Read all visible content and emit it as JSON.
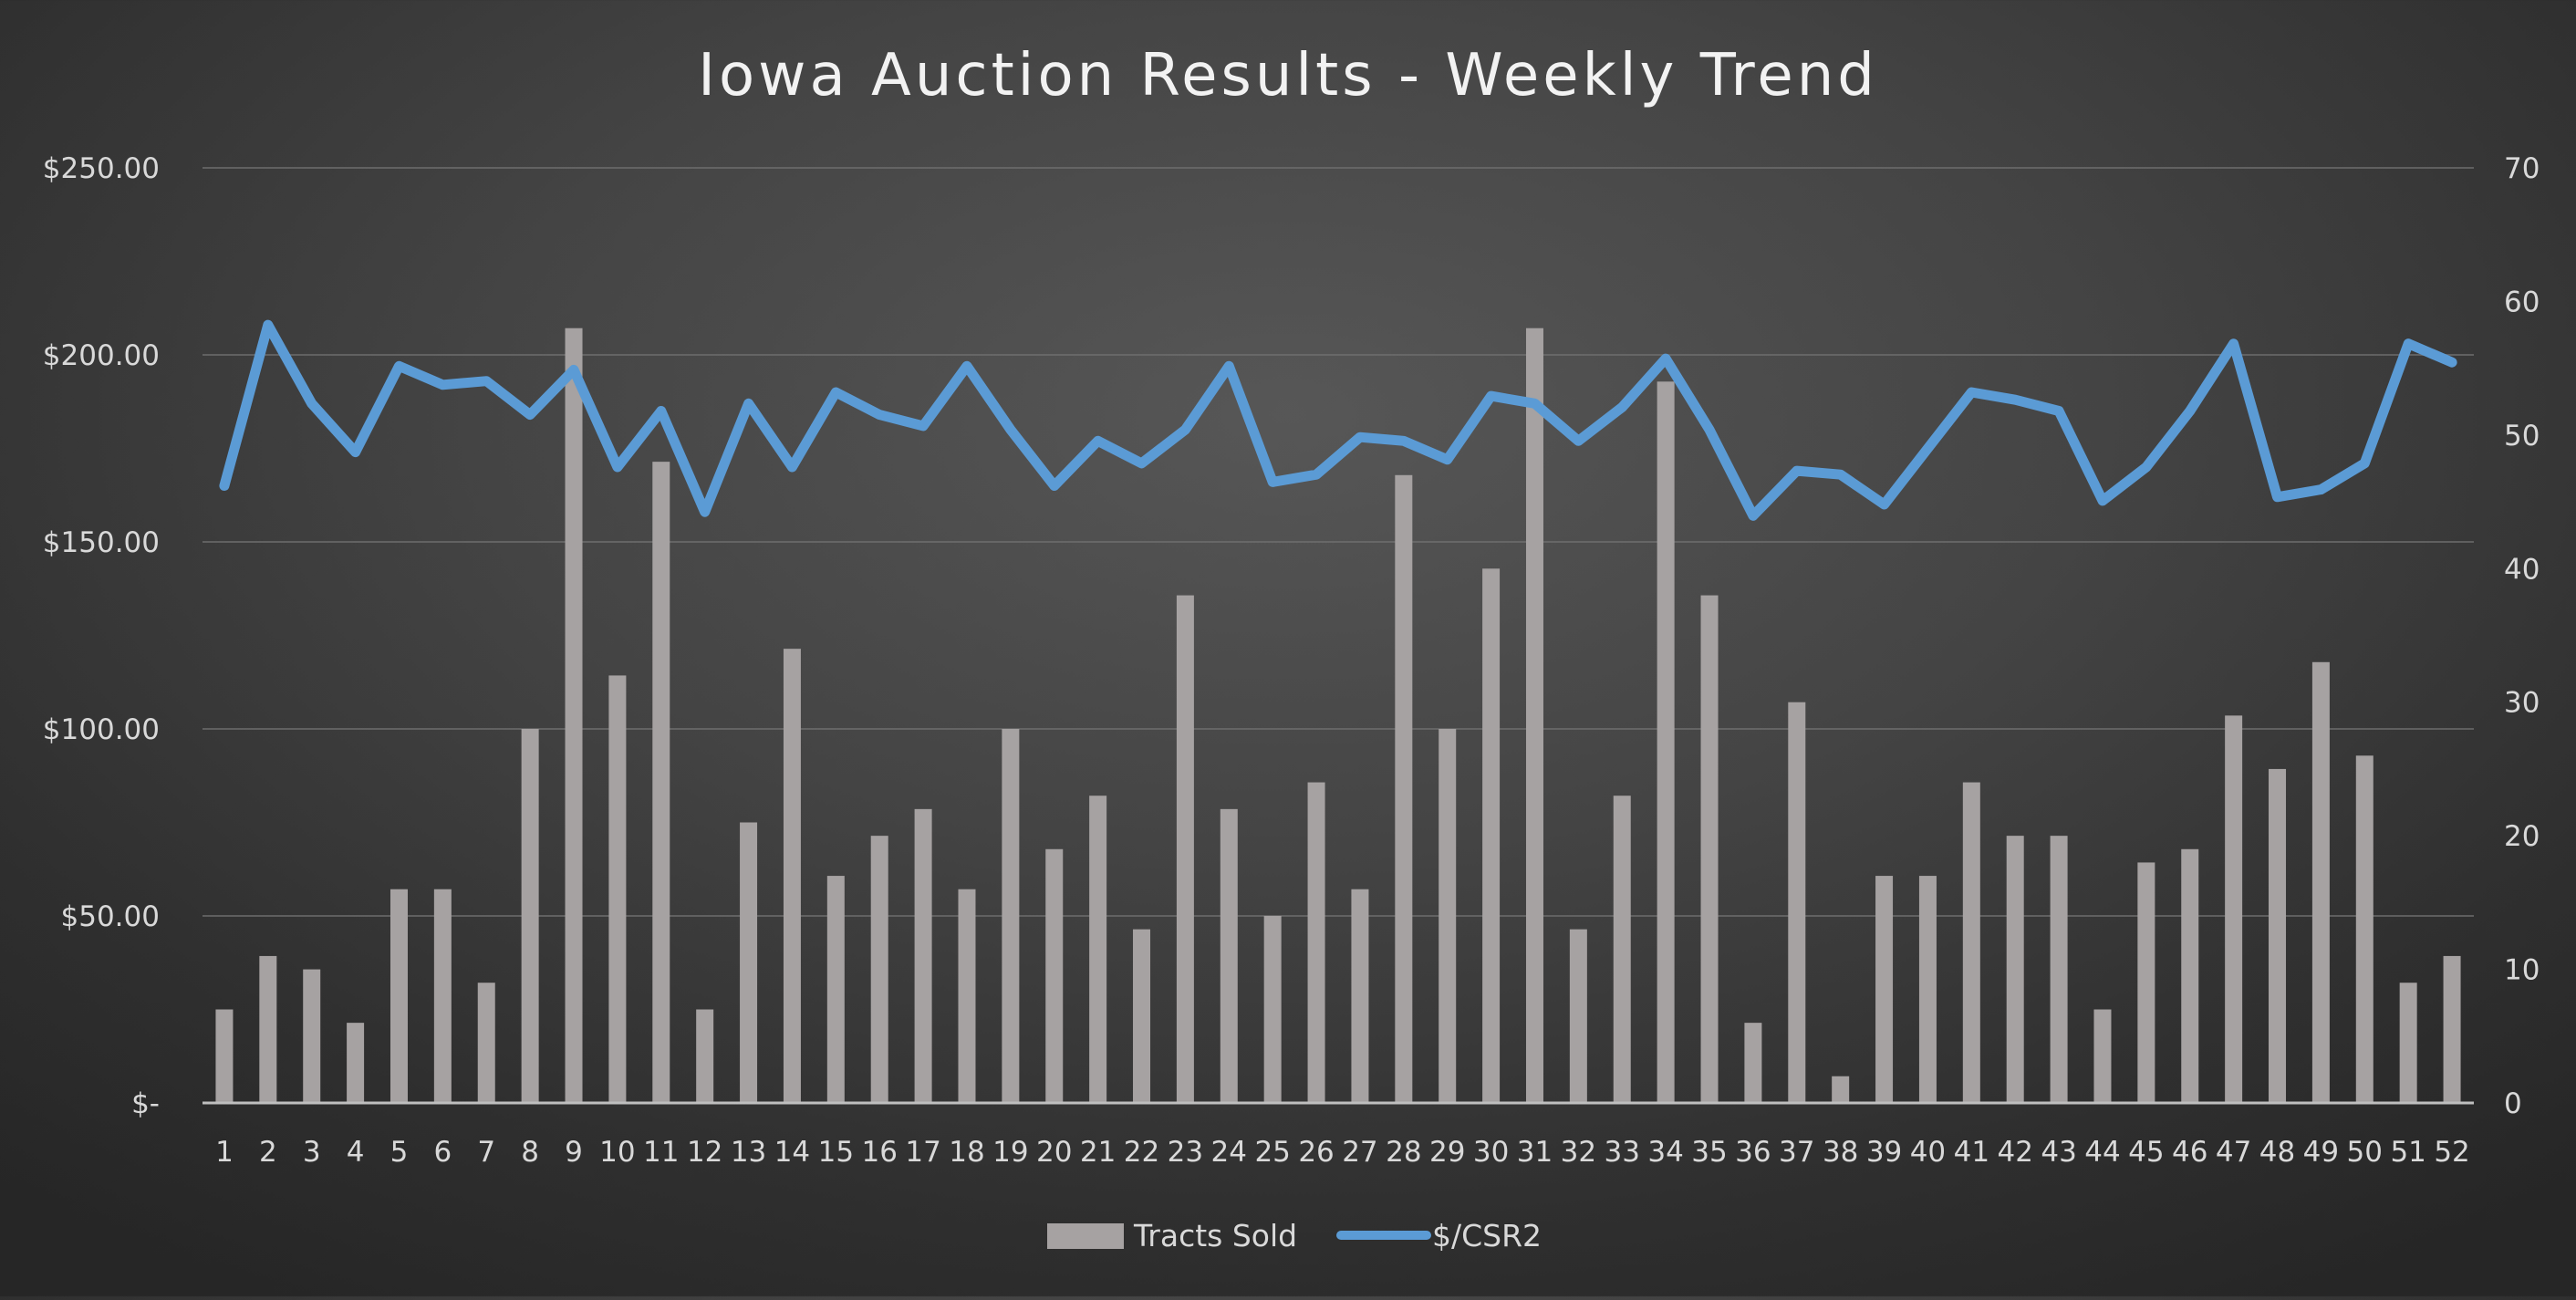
{
  "chart_data": {
    "type": "bar+line",
    "title": "Iowa Auction Results - Weekly Trend",
    "categories": [
      "1",
      "2",
      "3",
      "4",
      "5",
      "6",
      "7",
      "8",
      "9",
      "10",
      "11",
      "12",
      "13",
      "14",
      "15",
      "16",
      "17",
      "18",
      "19",
      "20",
      "21",
      "22",
      "23",
      "24",
      "25",
      "26",
      "27",
      "28",
      "29",
      "30",
      "31",
      "32",
      "33",
      "34",
      "35",
      "36",
      "37",
      "38",
      "39",
      "40",
      "41",
      "42",
      "43",
      "44",
      "45",
      "46",
      "47",
      "48",
      "49",
      "50",
      "51",
      "52"
    ],
    "series": [
      {
        "name": "Tracts Sold",
        "type": "bar",
        "axis": "right",
        "color": "#a6a2a2",
        "values": [
          7,
          11,
          10,
          6,
          16,
          16,
          9,
          28,
          58,
          32,
          48,
          7,
          21,
          34,
          17,
          20,
          22,
          16,
          28,
          19,
          23,
          13,
          38,
          22,
          14,
          24,
          16,
          47,
          28,
          40,
          58,
          13,
          23,
          54,
          38,
          6,
          30,
          2,
          17,
          17,
          24,
          20,
          20,
          7,
          18,
          19,
          29,
          25,
          33,
          26,
          9,
          11
        ]
      },
      {
        "name": "$/CSR2",
        "type": "line",
        "axis": "left",
        "color": "#5b9bd5",
        "values": [
          165,
          208,
          187,
          174,
          197,
          192,
          193,
          184,
          196,
          170,
          185,
          158,
          187,
          170,
          190,
          184,
          181,
          197,
          180,
          165,
          177,
          171,
          180,
          197,
          166,
          168,
          178,
          177,
          172,
          189,
          187,
          177,
          186,
          199,
          180,
          157,
          169,
          168,
          160,
          175,
          190,
          188,
          185,
          161,
          170,
          185,
          203,
          162,
          164,
          171,
          203,
          198
        ]
      }
    ],
    "left_axis": {
      "min": 0,
      "max": 250,
      "ticks": [
        0,
        50,
        100,
        150,
        200,
        250
      ],
      "tick_labels": [
        "$-",
        "$50.00",
        "$100.00",
        "$150.00",
        "$200.00",
        "$250.00"
      ]
    },
    "right_axis": {
      "min": 0,
      "max": 70,
      "ticks": [
        0,
        10,
        20,
        30,
        40,
        50,
        60,
        70
      ],
      "tick_labels": [
        "0",
        "10",
        "20",
        "30",
        "40",
        "50",
        "60",
        "70"
      ]
    },
    "grid": true,
    "legend_position": "bottom"
  }
}
